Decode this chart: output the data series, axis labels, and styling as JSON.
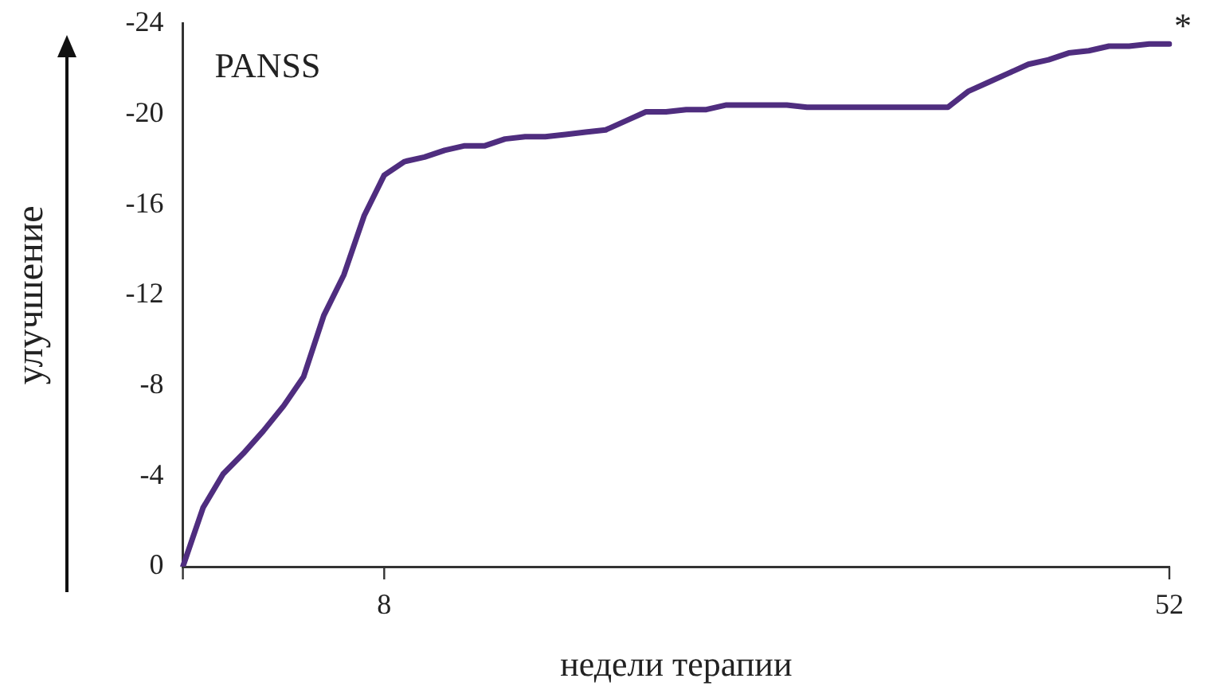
{
  "chart_data": {
    "type": "line",
    "xlabel": "недели терапии",
    "ylabel": "улучшение",
    "categories": [
      null,
      null,
      null,
      null,
      null,
      null,
      null,
      null,
      null,
      null,
      "8",
      null,
      null,
      null,
      null,
      null,
      null,
      null,
      null,
      null,
      null,
      null,
      null,
      null,
      null,
      null,
      null,
      null,
      null,
      null,
      null,
      null,
      null,
      null,
      null,
      null,
      null,
      null,
      null,
      null,
      null,
      null,
      null,
      null,
      null,
      null,
      null,
      null,
      null,
      "52"
    ],
    "series": [
      {
        "color": "#4f2d7f",
        "values": [
          0,
          -2.6,
          -4.1,
          -5.0,
          -6.0,
          -7.1,
          -8.4,
          -11.1,
          -12.9,
          -15.5,
          -17.3,
          -17.9,
          -18.1,
          -18.4,
          -18.6,
          -18.6,
          -18.9,
          -19.0,
          -19.0,
          -19.1,
          -19.2,
          -19.3,
          -19.7,
          -20.1,
          -20.1,
          -20.2,
          -20.2,
          -20.4,
          -20.4,
          -20.4,
          -20.4,
          -20.3,
          -20.3,
          -20.3,
          -20.3,
          -20.3,
          -20.3,
          -20.3,
          -20.3,
          -21.0,
          -21.4,
          -21.8,
          -22.2,
          -22.4,
          -22.7,
          -22.8,
          -23.0,
          -23.0,
          -23.1,
          -23.1
        ]
      }
    ],
    "ylim": [
      0,
      -24
    ],
    "yticks": [
      0,
      -4,
      -8,
      -12,
      -16,
      -20,
      -24
    ],
    "grid": false,
    "legend": false,
    "marker": "none",
    "line_style": "solid",
    "annotations": [
      "PANSS",
      {
        "text": "*",
        "x": "52",
        "y": -23.1
      }
    ]
  }
}
